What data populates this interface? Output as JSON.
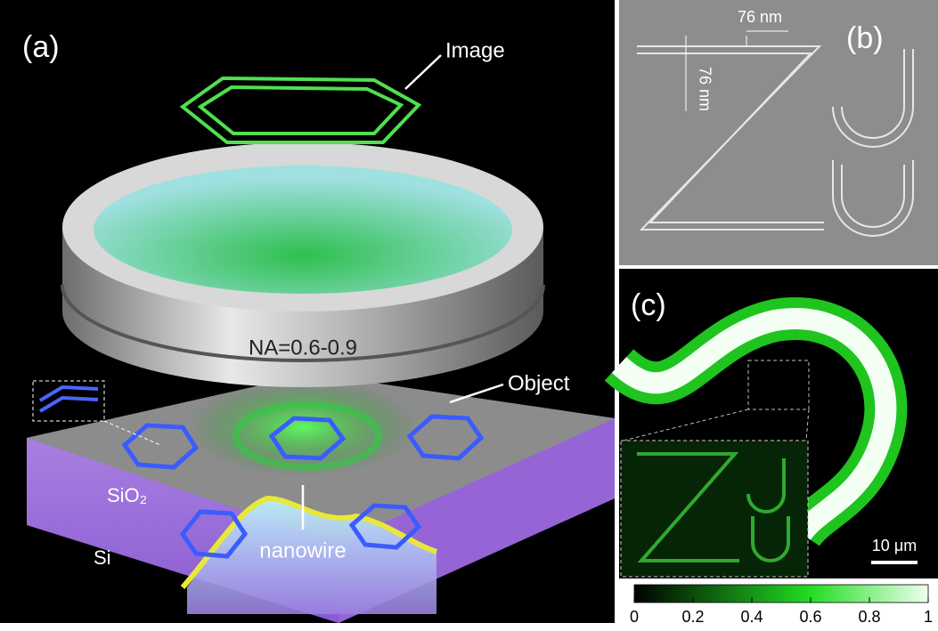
{
  "panel_a": {
    "label": "(a)",
    "image_label": "Image",
    "lens_label": "NA=0.6-0.9",
    "object_label": "Object",
    "layer_top": "SiO₂",
    "layer_bottom": "Si",
    "nanowire_label": "nanowire"
  },
  "panel_b": {
    "label": "(b)",
    "width_label": "76 nm",
    "height_label": "76 nm"
  },
  "panel_c": {
    "label": "(c)",
    "scale_bar": "10 μm",
    "colorbar": {
      "range": [
        0,
        1
      ],
      "ticks": [
        0,
        0.2,
        0.4,
        0.6,
        0.8,
        1
      ]
    }
  }
}
